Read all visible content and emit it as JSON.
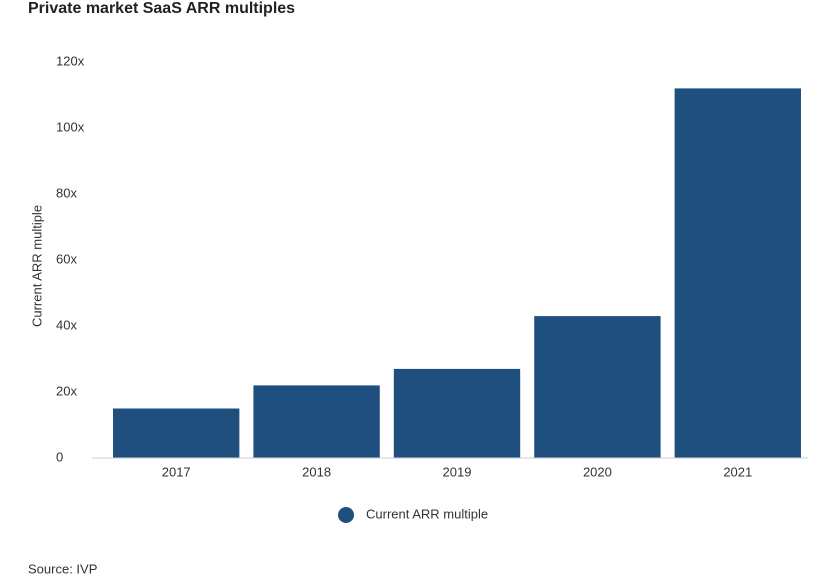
{
  "chart_data": {
    "type": "bar",
    "title": "Private market SaaS ARR multiples",
    "y_label": "Current ARR multiple",
    "categories": [
      "2017",
      "2018",
      "2019",
      "2020",
      "2021"
    ],
    "series": [
      {
        "name": "Current ARR multiple",
        "color": "#1f4f7f",
        "values": [
          15,
          22,
          27,
          43,
          112
        ]
      }
    ],
    "ylim": [
      0,
      120
    ],
    "yticks": [
      0,
      {
        "value": 20,
        "label": "20x"
      },
      {
        "value": 40,
        "label": "40x"
      },
      {
        "value": 60,
        "label": "60x"
      },
      {
        "value": 80,
        "label": "80x"
      },
      {
        "value": 100,
        "label": "100x"
      },
      {
        "value": 120,
        "label": "120x"
      }
    ],
    "source": "Source: IVP"
  }
}
